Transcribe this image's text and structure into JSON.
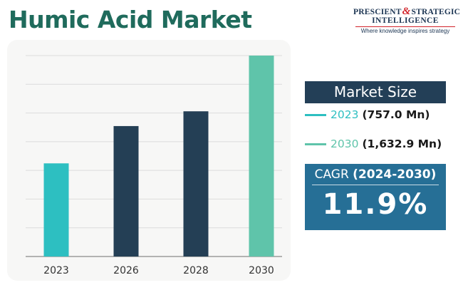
{
  "title": "Humic Acid Market",
  "logo": {
    "word1": "PRESCIENT",
    "ampersand": "&",
    "word2": "STRATEGIC",
    "line2": "INTELLIGENCE",
    "tagline": "Where knowledge inspires strategy"
  },
  "market_size": {
    "header": "Market Size",
    "items": [
      {
        "year": "2023",
        "value": "(757.0 Mn)",
        "color": "#2dbfc1"
      },
      {
        "year": "2030",
        "value": "(1,632.9 Mn)",
        "color": "#5fc4aa"
      }
    ]
  },
  "cagr": {
    "label": "CAGR",
    "period": "(2024-2030)",
    "value": "11.9%"
  },
  "colors": {
    "title": "#1f6b5c",
    "bar_2023": "#2dbfc1",
    "bar_dark": "#243f55",
    "bar_2030": "#5fc4aa",
    "header_bg": "#233f57",
    "cagr_bg": "#266f96",
    "gridline": "#dcdcdc"
  },
  "chart_data": {
    "type": "bar",
    "categories": [
      "2023",
      "2026",
      "2028",
      "2030"
    ],
    "values": [
      757.0,
      1060,
      1180,
      1632.9
    ],
    "colors": [
      "#2dbfc1",
      "#243f55",
      "#243f55",
      "#5fc4aa"
    ],
    "ylim": [
      0,
      1632.9
    ],
    "grid": true,
    "gridlines": 7,
    "xlabel": "",
    "ylabel": ""
  }
}
